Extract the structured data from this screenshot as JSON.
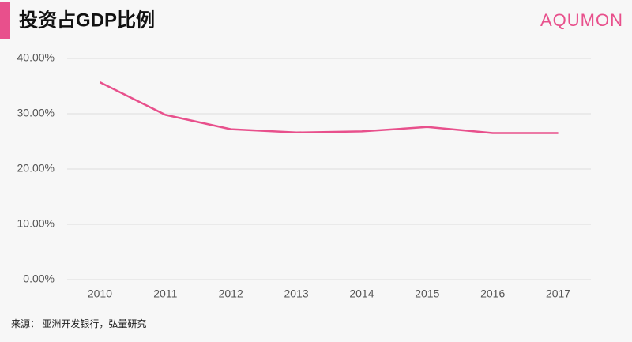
{
  "chart_data": {
    "type": "line",
    "title": "投资占GDP比例",
    "brand": "AQUMON",
    "source": "来源： 亚洲开发银行，弘量研究",
    "categories": [
      "2010",
      "2011",
      "2012",
      "2013",
      "2014",
      "2015",
      "2016",
      "2017"
    ],
    "values": [
      35.7,
      29.8,
      27.2,
      26.6,
      26.8,
      27.6,
      26.5,
      26.5
    ],
    "color": "#e8508c",
    "ylim": [
      0,
      40
    ],
    "yticks": [
      {
        "value": 0,
        "label": "0.00%"
      },
      {
        "value": 10,
        "label": "10.00%"
      },
      {
        "value": 20,
        "label": "20.00%"
      },
      {
        "value": 30,
        "label": "30.00%"
      },
      {
        "value": 40,
        "label": "40.00%"
      }
    ],
    "grid": true
  }
}
